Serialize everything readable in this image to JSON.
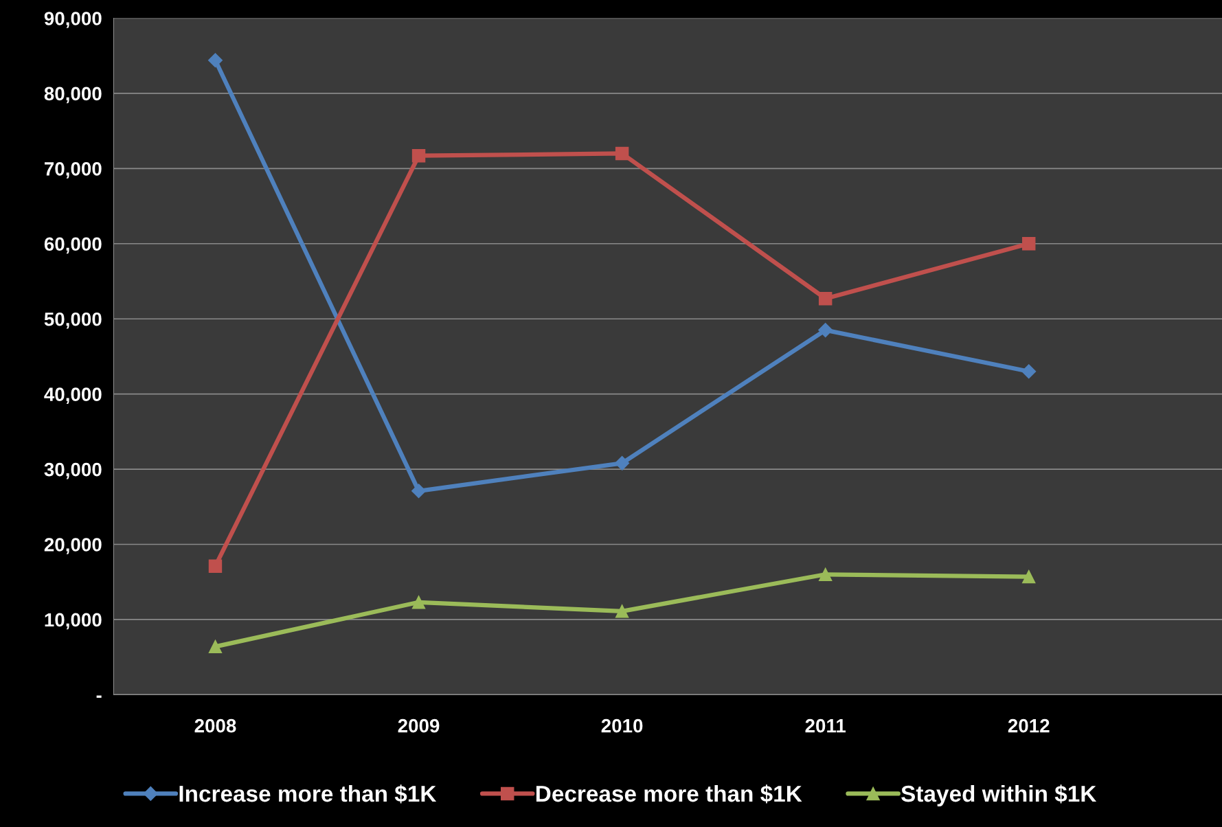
{
  "chart_data": {
    "type": "line",
    "categories": [
      "2008",
      "2009",
      "2010",
      "2011",
      "2012"
    ],
    "series": [
      {
        "name": "Increase more than $1K",
        "color": "#4f81bd",
        "marker": "diamond",
        "values": [
          84400,
          27100,
          30800,
          48500,
          43000
        ]
      },
      {
        "name": "Decrease more than $1K",
        "color": "#c0504d",
        "marker": "square",
        "values": [
          17100,
          71700,
          72000,
          52700,
          60000
        ]
      },
      {
        "name": "Stayed within $1K",
        "color": "#9bbb59",
        "marker": "triangle",
        "values": [
          6400,
          12300,
          11100,
          16000,
          15700
        ]
      }
    ],
    "ylim": [
      0,
      90000
    ],
    "yticks": [
      {
        "value": 0,
        "label": "-"
      },
      {
        "value": 10000,
        "label": "10,000"
      },
      {
        "value": 20000,
        "label": "20,000"
      },
      {
        "value": 30000,
        "label": "30,000"
      },
      {
        "value": 40000,
        "label": "40,000"
      },
      {
        "value": 50000,
        "label": "50,000"
      },
      {
        "value": 60000,
        "label": "60,000"
      },
      {
        "value": 70000,
        "label": "70,000"
      },
      {
        "value": 80000,
        "label": "80,000"
      },
      {
        "value": 90000,
        "label": "90,000"
      }
    ],
    "grid": "y",
    "legend": "bottom",
    "line_style": "solid"
  }
}
